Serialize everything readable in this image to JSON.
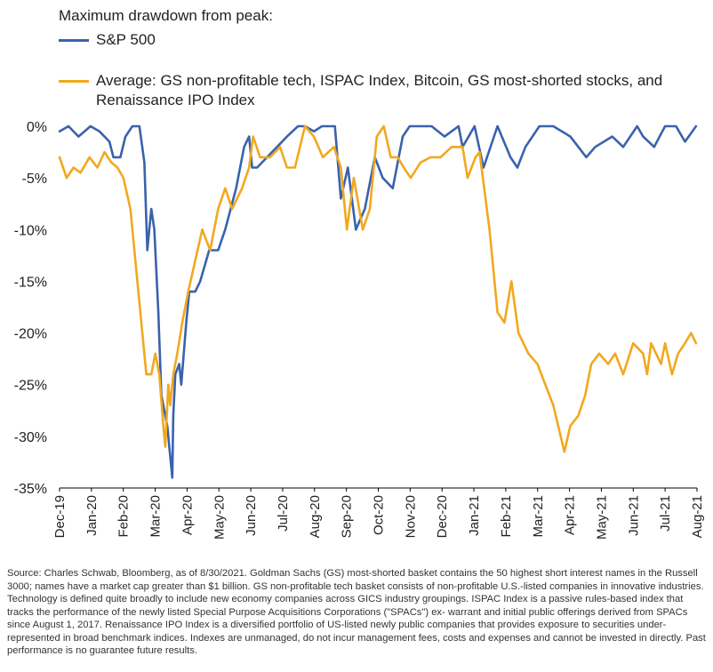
{
  "legend": {
    "title": "Maximum drawdown from peak:",
    "sp500_label": "S&P 500",
    "avg_label": "Average: GS non-profitable tech, ISPAC Index, Bitcoin, GS most-shorted stocks, and Renaissance IPO Index"
  },
  "colors": {
    "sp500": "#3a62ad",
    "average": "#f2a81e",
    "axis": "#000000",
    "text": "#222222"
  },
  "footnote": "Source: Charles Schwab, Bloomberg, as of 8/30/2021. Goldman Sachs (GS) most-shorted basket contains the 50 highest short interest names in the Russell 3000; names have a market cap greater than $1 billion. GS non-profitable tech basket consists of non-profitable U.S.-listed companies in innovative industries. Technology is defined quite broadly to include new economy companies across GICS industry groupings. ISPAC Index is a passive rules-based index that tracks the performance of the newly listed Special Purpose Acquisitions Corporations (\"SPACs\") ex- warrant and initial public offerings derived from SPACs since August 1, 2017. Renaissance IPO Index is a diversified portfolio of US-listed newly public companies that provides exposure to securities under-represented in broad benchmark indices. Indexes are unmanaged, do not incur management fees, costs and expenses and cannot be invested in directly. Past performance is no guarantee future results.",
  "chart_data": {
    "type": "line",
    "title": "Maximum drawdown from peak:",
    "xlabel": "",
    "ylabel": "",
    "ylim": [
      -35,
      0
    ],
    "y_ticks": [
      0,
      -5,
      -10,
      -15,
      -20,
      -25,
      -30,
      -35
    ],
    "y_tick_labels": [
      "0%",
      "-5%",
      "-10%",
      "-15%",
      "-20%",
      "-25%",
      "-30%",
      "-35%"
    ],
    "x_tick_labels": [
      "Dec-19",
      "Jan-20",
      "Feb-20",
      "Mar-20",
      "Apr-20",
      "May-20",
      "Jun-20",
      "Jul-20",
      "Aug-20",
      "Sep-20",
      "Oct-20",
      "Nov-20",
      "Dec-20",
      "Jan-21",
      "Feb-21",
      "Mar-21",
      "Apr-21",
      "May-21",
      "Jun-21",
      "Jul-21",
      "Aug-21"
    ],
    "x_range": [
      "2019-12-01",
      "2021-08-31"
    ],
    "legend_position": "top",
    "grid": false,
    "series": [
      {
        "name": "S&P 500",
        "color": "#3a62ad",
        "x": [
          "2019-12-01",
          "2019-12-10",
          "2019-12-20",
          "2020-01-01",
          "2020-01-10",
          "2020-01-20",
          "2020-01-24",
          "2020-01-31",
          "2020-02-05",
          "2020-02-12",
          "2020-02-19",
          "2020-02-24",
          "2020-02-27",
          "2020-03-02",
          "2020-03-05",
          "2020-03-09",
          "2020-03-12",
          "2020-03-16",
          "2020-03-18",
          "2020-03-20",
          "2020-03-23",
          "2020-03-24",
          "2020-03-26",
          "2020-03-30",
          "2020-04-01",
          "2020-04-06",
          "2020-04-09",
          "2020-04-15",
          "2020-04-20",
          "2020-04-29",
          "2020-05-08",
          "2020-05-15",
          "2020-05-26",
          "2020-06-03",
          "2020-06-08",
          "2020-06-11",
          "2020-06-16",
          "2020-06-26",
          "2020-07-06",
          "2020-07-16",
          "2020-07-27",
          "2020-08-03",
          "2020-08-12",
          "2020-08-20",
          "2020-09-02",
          "2020-09-08",
          "2020-09-15",
          "2020-09-23",
          "2020-10-02",
          "2020-10-12",
          "2020-10-20",
          "2020-10-30",
          "2020-11-09",
          "2020-11-16",
          "2020-11-27",
          "2020-12-08",
          "2020-12-21",
          "2021-01-04",
          "2021-01-08",
          "2021-01-20",
          "2021-01-29",
          "2021-02-12",
          "2021-02-25",
          "2021-03-04",
          "2021-03-12",
          "2021-03-26",
          "2021-04-09",
          "2021-04-26",
          "2021-05-12",
          "2021-05-21",
          "2021-06-07",
          "2021-06-18",
          "2021-07-02",
          "2021-07-08",
          "2021-07-19",
          "2021-07-30",
          "2021-08-10",
          "2021-08-19",
          "2021-08-30"
        ],
        "values": [
          -0.5,
          0,
          -1,
          0,
          -0.5,
          -1.5,
          -3,
          -3,
          -1,
          0,
          0,
          -3.5,
          -12,
          -8,
          -10,
          -18,
          -26,
          -28,
          -29,
          -31,
          -34,
          -28,
          -24,
          -23,
          -25,
          -19,
          -16,
          -16,
          -15,
          -12,
          -12,
          -10,
          -6,
          -2,
          -1,
          -4,
          -4,
          -3,
          -2,
          -1,
          0,
          0,
          -0.5,
          0,
          0,
          -7,
          -4,
          -10,
          -8,
          -3,
          -5,
          -6,
          -1,
          0,
          0,
          0,
          -1,
          0,
          -2,
          0,
          -4,
          0,
          -3,
          -4,
          -2,
          0,
          0,
          -1,
          -3,
          -2,
          -1,
          -2,
          0,
          -1,
          -2,
          0,
          0,
          -1.5,
          0
        ]
      },
      {
        "name": "Average: GS non-profitable tech, ISPAC Index, Bitcoin, GS most-shorted stocks, and Renaissance IPO Index",
        "color": "#f2a81e",
        "x": [
          "2019-12-01",
          "2019-12-08",
          "2019-12-15",
          "2019-12-22",
          "2019-12-31",
          "2020-01-08",
          "2020-01-15",
          "2020-01-22",
          "2020-01-28",
          "2020-02-03",
          "2020-02-10",
          "2020-02-17",
          "2020-02-22",
          "2020-02-26",
          "2020-03-02",
          "2020-03-06",
          "2020-03-10",
          "2020-03-14",
          "2020-03-16",
          "2020-03-19",
          "2020-03-21",
          "2020-03-24",
          "2020-03-28",
          "2020-04-02",
          "2020-04-08",
          "2020-04-15",
          "2020-04-22",
          "2020-04-30",
          "2020-05-08",
          "2020-05-15",
          "2020-05-22",
          "2020-06-01",
          "2020-06-08",
          "2020-06-12",
          "2020-06-19",
          "2020-06-29",
          "2020-07-09",
          "2020-07-16",
          "2020-07-24",
          "2020-08-03",
          "2020-08-12",
          "2020-08-21",
          "2020-09-01",
          "2020-09-08",
          "2020-09-14",
          "2020-09-21",
          "2020-09-30",
          "2020-10-07",
          "2020-10-14",
          "2020-10-21",
          "2020-10-28",
          "2020-11-04",
          "2020-11-10",
          "2020-11-17",
          "2020-11-27",
          "2020-12-07",
          "2020-12-17",
          "2020-12-28",
          "2021-01-08",
          "2021-01-13",
          "2021-01-21",
          "2021-01-25",
          "2021-02-04",
          "2021-02-12",
          "2021-02-19",
          "2021-02-26",
          "2021-03-05",
          "2021-03-15",
          "2021-03-24",
          "2021-04-01",
          "2021-04-09",
          "2021-04-20",
          "2021-04-26",
          "2021-05-04",
          "2021-05-11",
          "2021-05-17",
          "2021-05-25",
          "2021-06-03",
          "2021-06-10",
          "2021-06-18",
          "2021-06-28",
          "2021-07-08",
          "2021-07-12",
          "2021-07-16",
          "2021-07-26",
          "2021-07-30",
          "2021-08-06",
          "2021-08-12",
          "2021-08-19",
          "2021-08-25",
          "2021-08-30"
        ],
        "values": [
          -3,
          -5,
          -4,
          -4.5,
          -3,
          -4,
          -2.5,
          -3.5,
          -4,
          -5,
          -8,
          -15,
          -20,
          -24,
          -24,
          -22,
          -24,
          -29,
          -31,
          -25,
          -27,
          -24,
          -22,
          -19,
          -16,
          -13,
          -10,
          -12,
          -8,
          -6,
          -8,
          -6,
          -4,
          -1,
          -3,
          -3,
          -2,
          -4,
          -4,
          0,
          -1,
          -3,
          -2,
          -4,
          -10,
          -5,
          -10,
          -8,
          -1,
          0,
          -3,
          -3,
          -4,
          -5,
          -3.5,
          -3,
          -3,
          -2,
          -2,
          -5,
          -3,
          -2.5,
          -10,
          -18,
          -19,
          -15,
          -20,
          -22,
          -23,
          -25,
          -27,
          -31.5,
          -29,
          -28,
          -26,
          -23,
          -22,
          -23,
          -22,
          -24,
          -21,
          -22,
          -24,
          -21,
          -23,
          -21,
          -24,
          -22,
          -21,
          -20,
          -21
        ]
      }
    ]
  }
}
